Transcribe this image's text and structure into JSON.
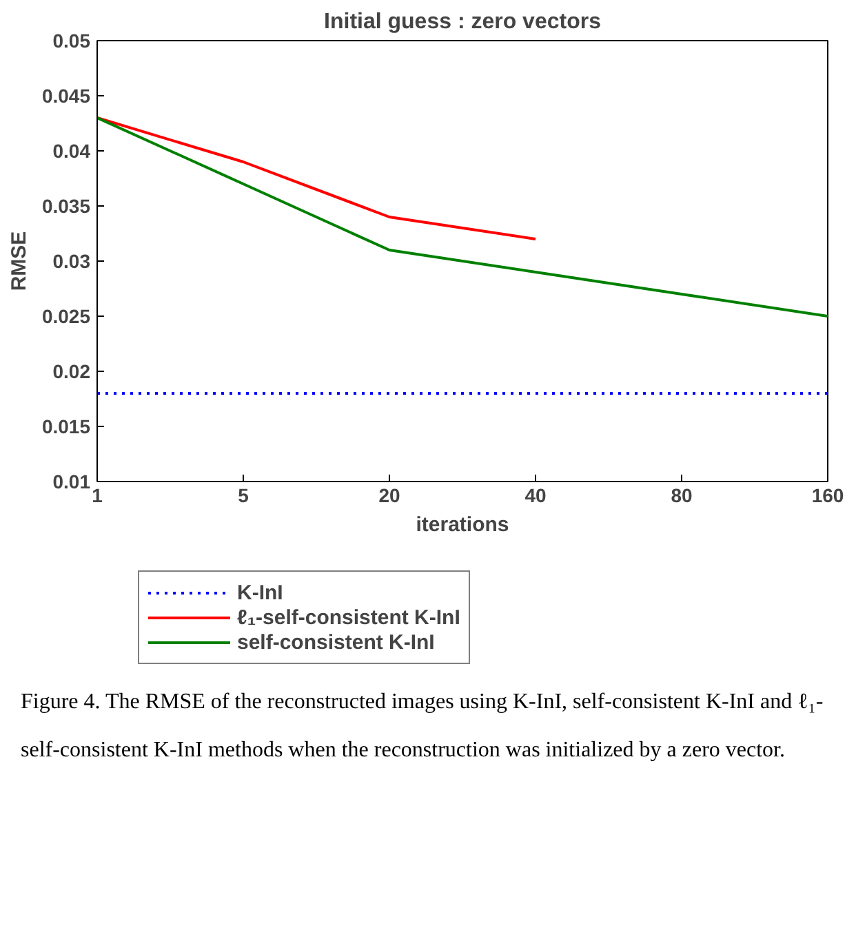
{
  "chart_data": {
    "type": "line",
    "title": "Initial guess : zero vectors",
    "xlabel": "iterations",
    "ylabel": "RMSE",
    "categories": [
      "1",
      "5",
      "20",
      "40",
      "80",
      "160"
    ],
    "ylim": [
      0.01,
      0.05
    ],
    "yticks": [
      0.01,
      0.015,
      0.02,
      0.025,
      0.03,
      0.035,
      0.04,
      0.045,
      0.05
    ],
    "series": [
      {
        "name": "K-InI",
        "color": "#0000ff",
        "line_style": "dotted",
        "values": [
          0.018,
          0.018,
          0.018,
          0.018,
          0.018,
          0.018
        ]
      },
      {
        "name": "ℓ₁-self-consistent K-InI",
        "color": "#ff0000",
        "line_style": "solid",
        "values": [
          0.043,
          0.039,
          0.034,
          0.032,
          null,
          null
        ]
      },
      {
        "name": "self-consistent K-InI",
        "color": "#008000",
        "line_style": "solid",
        "values": [
          0.043,
          0.037,
          0.031,
          0.029,
          0.027,
          0.025
        ]
      }
    ],
    "grid": false,
    "legend": "bottom",
    "annotations": [
      "Figure 4.   The RMSE of the reconstructed images using K-InI, self-consistent K-InI and ℓ₁-self-consistent K-InI methods when the reconstruction was initialized by a zero vector."
    ]
  }
}
